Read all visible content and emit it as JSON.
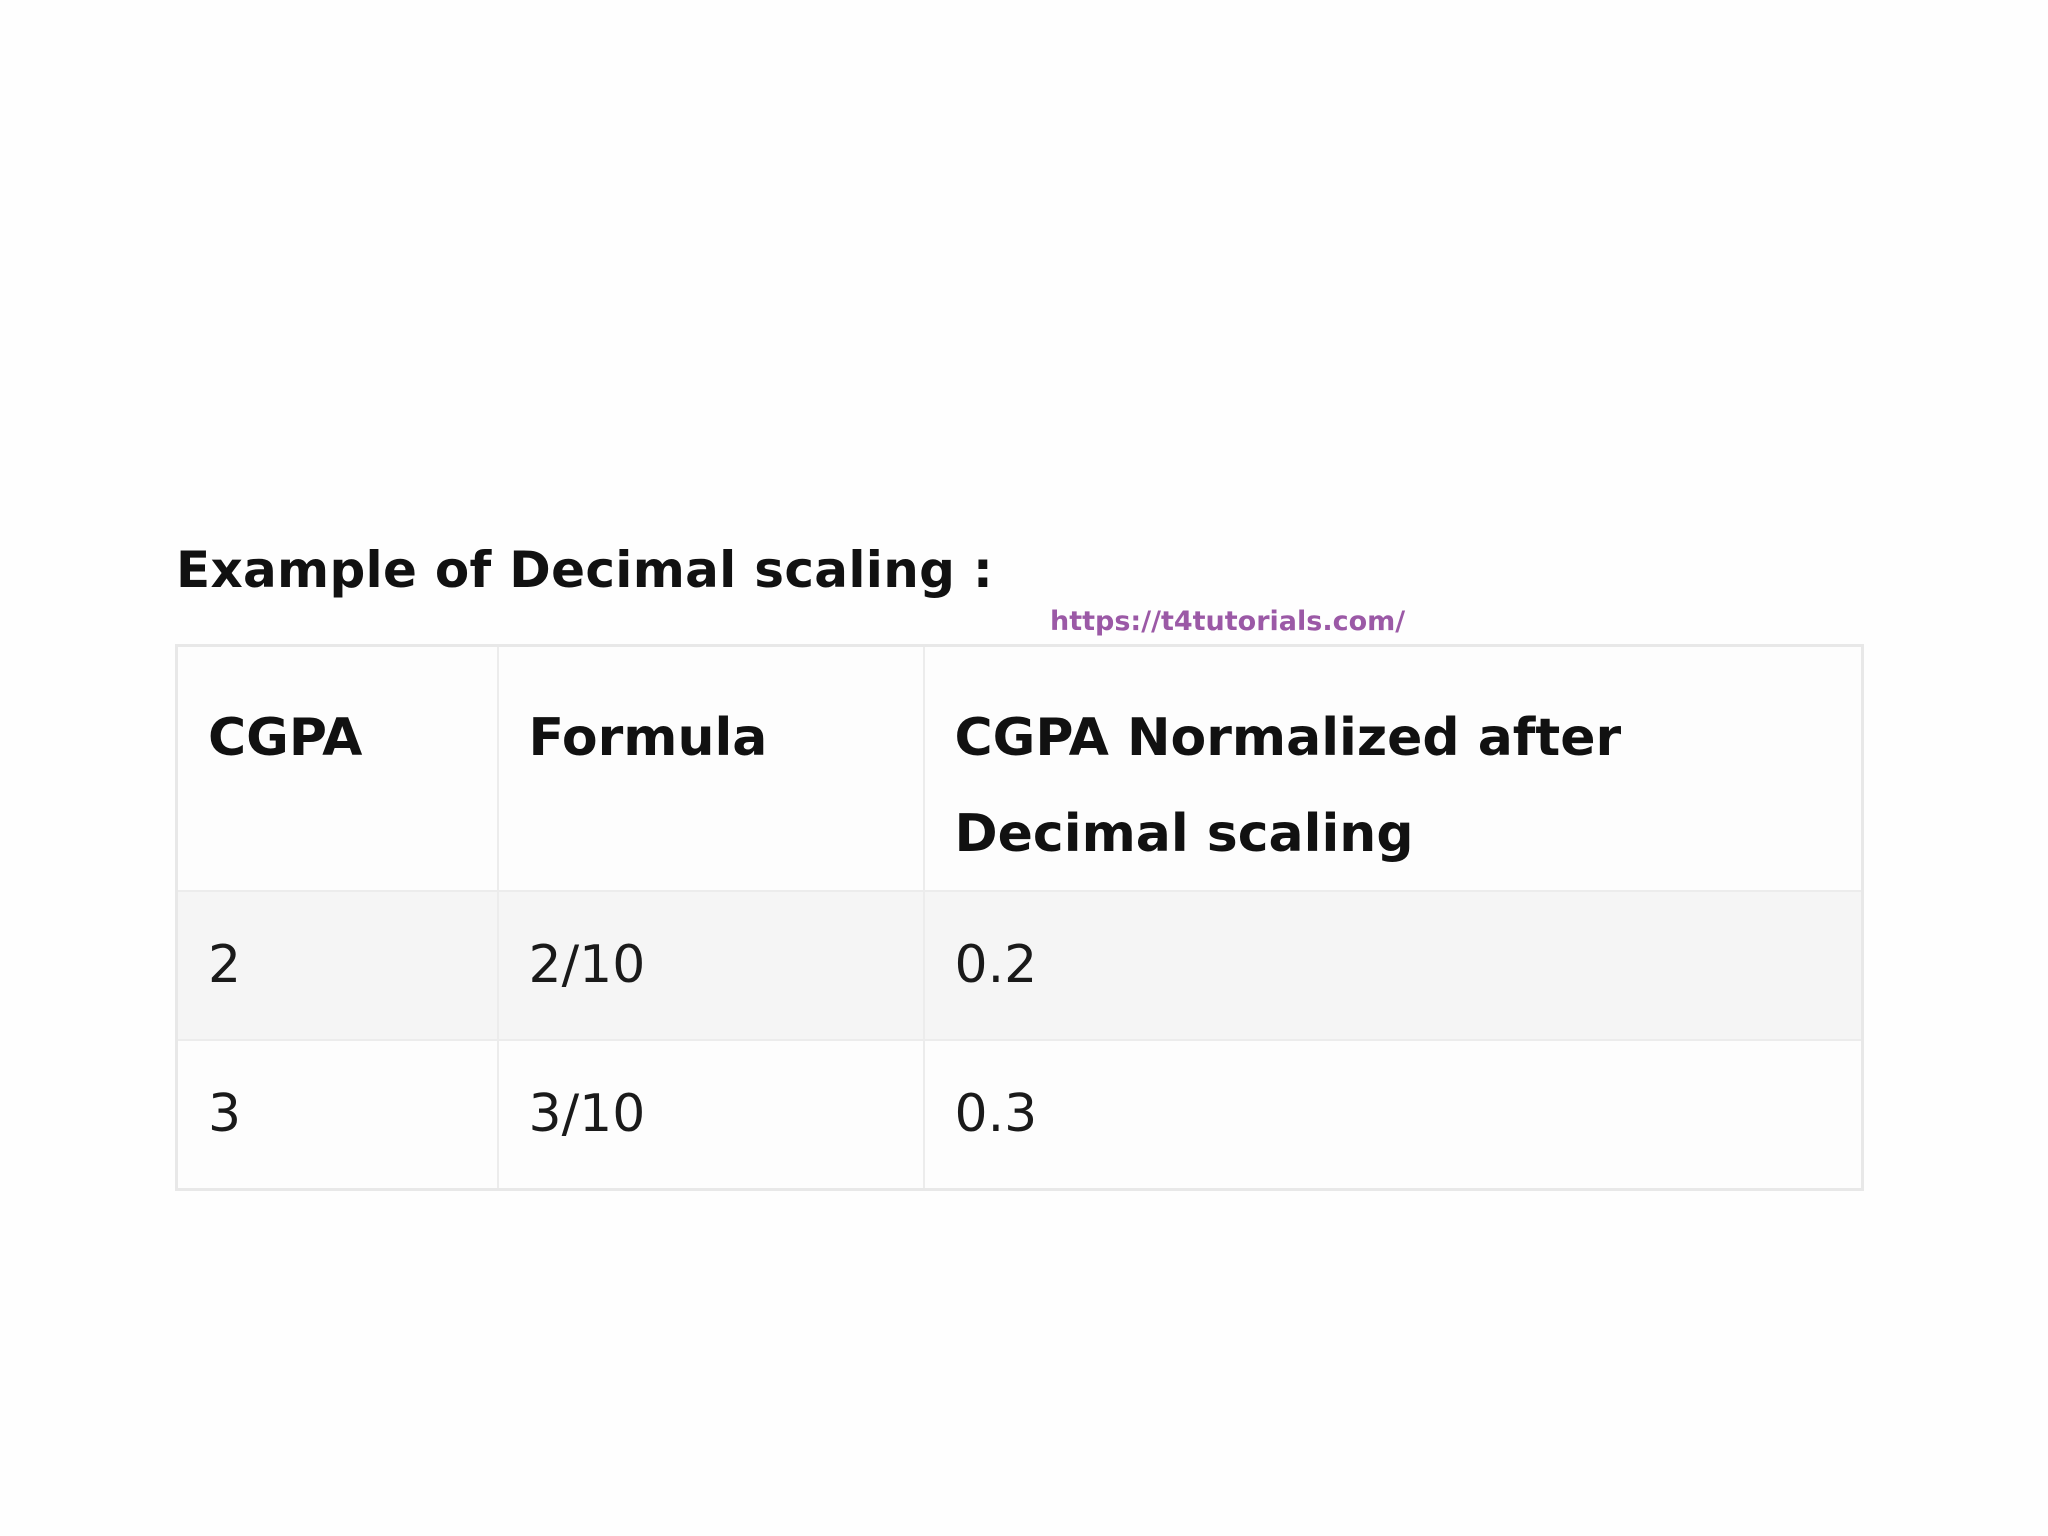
{
  "heading": "Example of Decimal scaling :",
  "watermark": "https://t4tutorials.com/",
  "table": {
    "headers": [
      "CGPA",
      "Formula",
      "CGPA Normalized after Decimal scaling"
    ],
    "rows": [
      [
        "2",
        "2/10",
        "0.2"
      ],
      [
        "3",
        "3/10",
        "0.3"
      ]
    ]
  },
  "colors": {
    "watermark": "#9b59a6",
    "text": "#111111",
    "row_stripe": "#f5f5f5",
    "border": "#e8e8e8"
  }
}
